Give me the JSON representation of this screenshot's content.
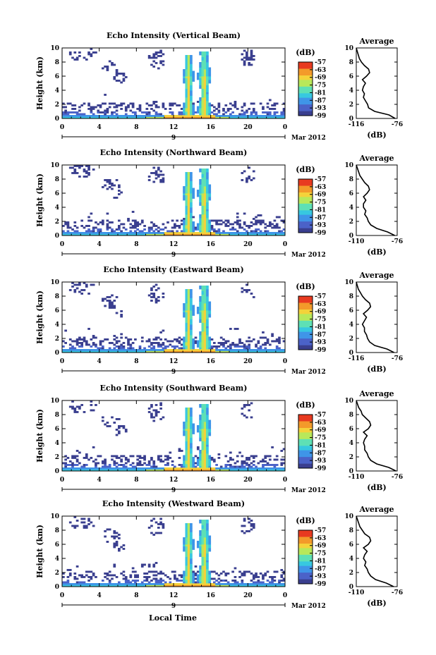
{
  "figure": {
    "xlabel": "Local Time",
    "date_label": "Mar 2012",
    "date_tick": "9",
    "colorbar_label": "(dB)",
    "colorbar_ticks": [
      "-57",
      "-63",
      "-69",
      "-75",
      "-81",
      "-87",
      "-93",
      "-99"
    ],
    "colors": {
      "no_data": "#ffffff",
      "scale": [
        "#3a3f8f",
        "#4b62c8",
        "#3f95e8",
        "#37c8e0",
        "#5ee0b5",
        "#b8e85a",
        "#f4d23a",
        "#f39a2a",
        "#e83a20"
      ]
    }
  },
  "chart_data": [
    {
      "type": "heatmap",
      "title": "Echo Intensity (Vertical Beam)",
      "xlabel": "",
      "ylabel": "Height (km)",
      "xticks": [
        "0",
        "4",
        "8",
        "12",
        "16",
        "20",
        "0"
      ],
      "yticks": [
        "0",
        "2",
        "4",
        "6",
        "8",
        "10"
      ],
      "xlim": [
        0,
        24
      ],
      "ylim": [
        0,
        10
      ],
      "zlim": [
        -99,
        -57
      ],
      "profile": {
        "title": "Average",
        "xlabel": "(dB)",
        "xticks": [
          "-116",
          "-76"
        ],
        "xlim": [
          -116,
          -76
        ],
        "height": [
          0,
          0.5,
          1,
          1.5,
          2,
          2.5,
          3,
          3.5,
          4,
          4.5,
          5,
          5.5,
          6,
          6.5,
          7,
          7.5,
          8,
          8.5,
          9,
          9.5,
          10
        ],
        "values": [
          -78,
          -84,
          -98,
          -104,
          -105,
          -107,
          -109,
          -108,
          -110,
          -109,
          -107,
          -110,
          -106,
          -103,
          -104,
          -108,
          -111,
          -113,
          -114,
          -115,
          -116
        ]
      }
    },
    {
      "type": "heatmap",
      "title": "Echo Intensity (Northward Beam)",
      "xlabel": "",
      "ylabel": "Height (km)",
      "xticks": [
        "0",
        "4",
        "8",
        "12",
        "16",
        "20",
        "0"
      ],
      "yticks": [
        "0",
        "2",
        "4",
        "6",
        "8",
        "10"
      ],
      "xlim": [
        0,
        24
      ],
      "ylim": [
        0,
        10
      ],
      "zlim": [
        -99,
        -57
      ],
      "profile": {
        "title": "Average",
        "xlabel": "(dB)",
        "xticks": [
          "-110",
          "-76"
        ],
        "xlim": [
          -110,
          -76
        ],
        "height": [
          0,
          0.5,
          1,
          1.5,
          2,
          2.5,
          3,
          3.5,
          4,
          4.5,
          5,
          5.5,
          6,
          6.5,
          7,
          7.5,
          8,
          8.5,
          9,
          9.5,
          10
        ],
        "values": [
          -78,
          -84,
          -93,
          -98,
          -100,
          -101,
          -103,
          -102,
          -104,
          -104,
          -102,
          -104,
          -101,
          -99,
          -100,
          -103,
          -105,
          -107,
          -108,
          -109,
          -110
        ]
      }
    },
    {
      "type": "heatmap",
      "title": "Echo Intensity (Eastward Beam)",
      "xlabel": "",
      "ylabel": "Height (km)",
      "xticks": [
        "0",
        "4",
        "8",
        "12",
        "16",
        "20",
        "0"
      ],
      "yticks": [
        "0",
        "2",
        "4",
        "6",
        "8",
        "10"
      ],
      "xlim": [
        0,
        24
      ],
      "ylim": [
        0,
        10
      ],
      "zlim": [
        -99,
        -57
      ],
      "profile": {
        "title": "Average",
        "xlabel": "(dB)",
        "xticks": [
          "-116",
          "-76"
        ],
        "xlim": [
          -116,
          -76
        ],
        "height": [
          0,
          0.5,
          1,
          1.5,
          2,
          2.5,
          3,
          3.5,
          4,
          4.5,
          5,
          5.5,
          6,
          6.5,
          7,
          7.5,
          8,
          8.5,
          9,
          9.5,
          10
        ],
        "values": [
          -79,
          -86,
          -98,
          -103,
          -105,
          -106,
          -108,
          -108,
          -110,
          -108,
          -106,
          -109,
          -105,
          -102,
          -103,
          -107,
          -110,
          -112,
          -114,
          -115,
          -116
        ]
      }
    },
    {
      "type": "heatmap",
      "title": "Echo Intensity (Southward Beam)",
      "xlabel": "",
      "ylabel": "Height (km)",
      "xticks": [
        "0",
        "4",
        "8",
        "12",
        "16",
        "20",
        "0"
      ],
      "yticks": [
        "0",
        "2",
        "4",
        "6",
        "8",
        "10"
      ],
      "xlim": [
        0,
        24
      ],
      "ylim": [
        0,
        10
      ],
      "zlim": [
        -99,
        -57
      ],
      "profile": {
        "title": "Average",
        "xlabel": "(dB)",
        "xticks": [
          "-110",
          "-76"
        ],
        "xlim": [
          -110,
          -76
        ],
        "height": [
          0,
          0.5,
          1,
          1.5,
          2,
          2.5,
          3,
          3.5,
          4,
          4.5,
          5,
          5.5,
          6,
          6.5,
          7,
          7.5,
          8,
          8.5,
          9,
          9.5,
          10
        ],
        "values": [
          -77,
          -83,
          -93,
          -98,
          -100,
          -101,
          -103,
          -103,
          -104,
          -103,
          -101,
          -104,
          -100,
          -98,
          -99,
          -102,
          -105,
          -106,
          -108,
          -109,
          -110
        ]
      }
    },
    {
      "type": "heatmap",
      "title": "Echo Intensity (Westward Beam)",
      "xlabel": "Local Time",
      "ylabel": "Height (km)",
      "xticks": [
        "0",
        "4",
        "8",
        "12",
        "16",
        "20",
        "0"
      ],
      "yticks": [
        "0",
        "2",
        "4",
        "6",
        "8",
        "10"
      ],
      "xlim": [
        0,
        24
      ],
      "ylim": [
        0,
        10
      ],
      "zlim": [
        -99,
        -57
      ],
      "profile": {
        "title": "Average",
        "xlabel": "(dB)",
        "xticks": [
          "-110",
          "-76"
        ],
        "xlim": [
          -110,
          -76
        ],
        "height": [
          0,
          0.5,
          1,
          1.5,
          2,
          2.5,
          3,
          3.5,
          4,
          4.5,
          5,
          5.5,
          6,
          6.5,
          7,
          7.5,
          8,
          8.5,
          9,
          9.5,
          10
        ],
        "values": [
          -79,
          -85,
          -94,
          -98,
          -100,
          -101,
          -103,
          -102,
          -104,
          -103,
          -101,
          -104,
          -100,
          -98,
          -99,
          -103,
          -105,
          -107,
          -108,
          -109,
          -110
        ]
      }
    }
  ]
}
